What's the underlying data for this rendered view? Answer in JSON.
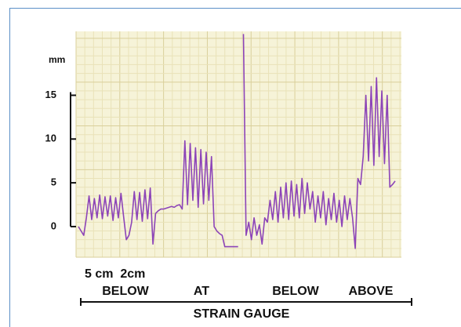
{
  "chart_data": {
    "type": "line",
    "y_label": "mm",
    "ylim": [
      -3.5,
      22.3
    ],
    "yticks": [
      0,
      5,
      10,
      15
    ],
    "grid": true,
    "series": [
      {
        "color": "#8c44b8",
        "values": [
          0,
          -0.5,
          -1,
          1,
          3.5,
          0.8,
          3.2,
          1,
          3.6,
          0.9,
          3.4,
          1.2,
          3.5,
          0.7,
          3.3,
          1,
          3.8,
          1.1,
          -1.5,
          -1,
          0.5,
          4,
          0.8,
          3.9,
          0.6,
          4.2,
          0.9,
          4.4,
          -2,
          1.5,
          1.8,
          2,
          2,
          2.1,
          2.2,
          2.3,
          2.2,
          2.4,
          2.5,
          2,
          9.8,
          2.5,
          9.5,
          3,
          9,
          2.2,
          8.8,
          2.6,
          8.5,
          3,
          8,
          0,
          -0.5,
          -0.8,
          -1,
          -2.3,
          -2.3,
          -2.3,
          -2.3,
          -2.3,
          -2.3,
          null,
          22,
          -1,
          0.5,
          -1.5,
          1,
          -1,
          0.2,
          -2,
          1,
          0.5,
          3,
          0.8,
          4,
          0.5,
          4.5,
          1,
          5,
          0.8,
          5.2,
          1.2,
          4.8,
          1,
          5.5,
          1.5,
          5,
          2,
          4,
          0.5,
          3.5,
          1,
          4,
          0.2,
          3.2,
          0.8,
          3.8,
          0.5,
          3,
          0,
          3.5,
          0.8,
          3.2,
          1,
          -2.5,
          5.5,
          4.8,
          8,
          15,
          7.5,
          16,
          7,
          17,
          8,
          15.5,
          7.2,
          15,
          4.5,
          4.8,
          5.2
        ]
      }
    ],
    "annotations": {
      "spacing": "5 cm  2cm",
      "positions": [
        "BELOW",
        "AT",
        "BELOW",
        "ABOVE"
      ],
      "x_label": "STRAIN GAUGE"
    }
  }
}
